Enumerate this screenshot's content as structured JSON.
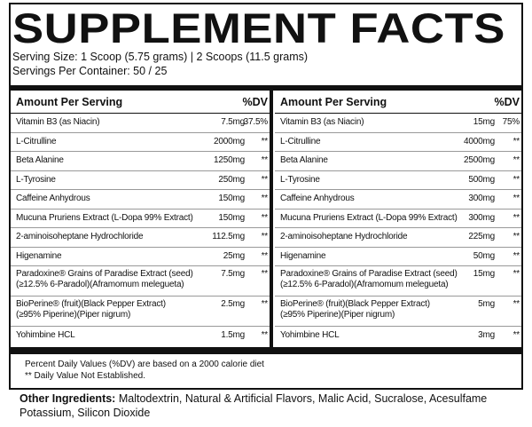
{
  "header": {
    "title": "SUPPLEMENT FACTS",
    "serving_size": "Serving Size: 1 Scoop (5.75 grams) | 2 Scoops (11.5 grams)",
    "servings_per_container": "Servings Per Container: 50 / 25"
  },
  "tables": [
    {
      "col_amount": "Amount Per Serving",
      "col_dv": "%DV",
      "rows": [
        {
          "name": [
            "Vitamin B3 (as Niacin)"
          ],
          "amount": "7.5mg",
          "dv": "37.5%"
        },
        {
          "name": [
            "L-Citrulline"
          ],
          "amount": "2000mg",
          "dv": "**"
        },
        {
          "name": [
            "Beta Alanine"
          ],
          "amount": "1250mg",
          "dv": "**"
        },
        {
          "name": [
            "L-Tyrosine"
          ],
          "amount": "250mg",
          "dv": "**"
        },
        {
          "name": [
            "Caffeine Anhydrous"
          ],
          "amount": "150mg",
          "dv": "**"
        },
        {
          "name": [
            "Mucuna Pruriens Extract (L-Dopa 99% Extract)"
          ],
          "amount": "150mg",
          "dv": "**"
        },
        {
          "name": [
            "2-aminoisoheptane Hydrochloride"
          ],
          "amount": "112.5mg",
          "dv": "**"
        },
        {
          "name": [
            "Higenamine"
          ],
          "amount": "25mg",
          "dv": "**"
        },
        {
          "name": [
            "Paradoxine® Grains of Paradise Extract (seed)",
            "(≥12.5% 6-Paradol)(Aframomum melegueta)"
          ],
          "amount": "7.5mg",
          "dv": "**"
        },
        {
          "name": [
            "BioPerine® (fruit)(Black Pepper Extract)",
            "(≥95% Piperine)(Piper nigrum)"
          ],
          "amount": "2.5mg",
          "dv": "**"
        },
        {
          "name": [
            "Yohimbine HCL"
          ],
          "amount": "1.5mg",
          "dv": "**"
        }
      ]
    },
    {
      "col_amount": "Amount Per Serving",
      "col_dv": "%DV",
      "rows": [
        {
          "name": [
            "Vitamin B3 (as Niacin)"
          ],
          "amount": "15mg",
          "dv": "75%"
        },
        {
          "name": [
            "L-Citrulline"
          ],
          "amount": "4000mg",
          "dv": "**"
        },
        {
          "name": [
            "Beta Alanine"
          ],
          "amount": "2500mg",
          "dv": "**"
        },
        {
          "name": [
            "L-Tyrosine"
          ],
          "amount": "500mg",
          "dv": "**"
        },
        {
          "name": [
            "Caffeine Anhydrous"
          ],
          "amount": "300mg",
          "dv": "**"
        },
        {
          "name": [
            "Mucuna Pruriens Extract (L-Dopa 99% Extract)"
          ],
          "amount": "300mg",
          "dv": "**"
        },
        {
          "name": [
            "2-aminoisoheptane Hydrochloride"
          ],
          "amount": "225mg",
          "dv": "**"
        },
        {
          "name": [
            "Higenamine"
          ],
          "amount": "50mg",
          "dv": "**"
        },
        {
          "name": [
            "Paradoxine® Grains of Paradise Extract (seed)",
            "(≥12.5% 6-Paradol)(Aframomum melegueta)"
          ],
          "amount": "15mg",
          "dv": "**"
        },
        {
          "name": [
            "BioPerine® (fruit)(Black Pepper Extract)",
            "(≥95% Piperine)(Piper nigrum)"
          ],
          "amount": "5mg",
          "dv": "**"
        },
        {
          "name": [
            "Yohimbine HCL"
          ],
          "amount": "3mg",
          "dv": "**"
        }
      ]
    }
  ],
  "footnotes": [
    "Percent Daily Values (%DV) are based on a 2000 calorie diet",
    "** Daily Value Not Established."
  ],
  "other_ingredients": {
    "label": "Other Ingredients:",
    "text": "Maltodextrin, Natural & Artificial Flavors, Malic Acid, Sucralose, Acesulfame Potassium, Silicon Dioxide"
  }
}
